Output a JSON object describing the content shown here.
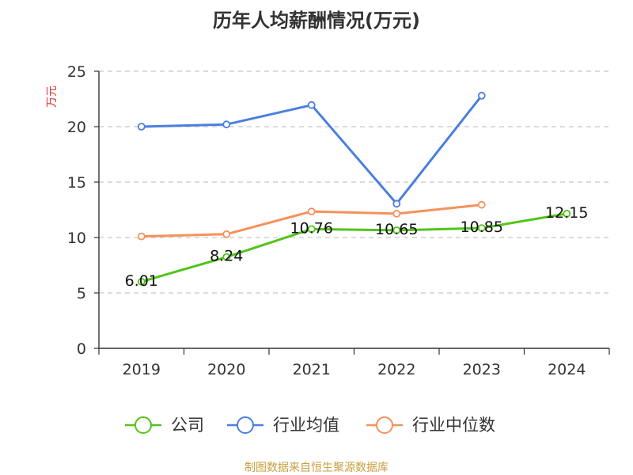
{
  "chart_data": {
    "type": "line",
    "title": "历年人均薪酬情况(万元)",
    "ylabel": "万元",
    "xlabel": "",
    "categories": [
      "2019",
      "2020",
      "2021",
      "2022",
      "2023",
      "2024"
    ],
    "ylim": [
      0,
      25
    ],
    "yticks": [
      0,
      5,
      10,
      15,
      20,
      25
    ],
    "grid": true,
    "legend_position": "bottom",
    "series": [
      {
        "name": "公司",
        "color": "#52c41a",
        "values": [
          6.01,
          8.24,
          10.76,
          10.65,
          10.85,
          12.15
        ],
        "labels": [
          "6.01",
          "8.24",
          "10.76",
          "10.65",
          "10.85",
          "12.15"
        ]
      },
      {
        "name": "行业均值",
        "color": "#4a7fde",
        "values": [
          20.0,
          20.2,
          21.95,
          13.05,
          22.8,
          null
        ]
      },
      {
        "name": "行业中位数",
        "color": "#f7915a",
        "values": [
          10.1,
          10.3,
          12.35,
          12.15,
          12.95,
          null
        ]
      }
    ]
  },
  "source": "制图数据来自恒生聚源数据库"
}
